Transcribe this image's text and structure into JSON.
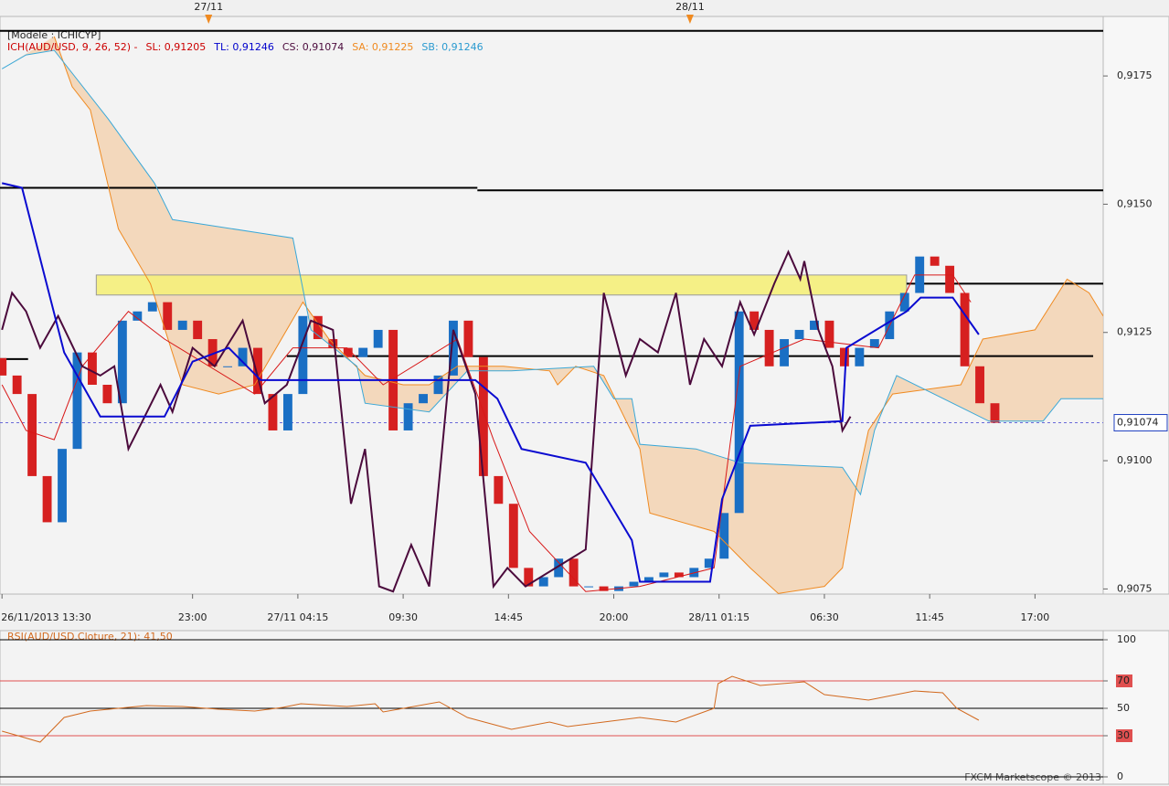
{
  "chart_data": [
    {
      "type": "candlestick",
      "title": "[Modele : ICHICYP]",
      "legend": [
        {
          "text": "ICH(AUD/USD, 9, 26, 52) -",
          "color": "#cc0000"
        },
        {
          "text": "SL: 0,91205",
          "color": "#cc0000"
        },
        {
          "text": "TL: 0,91246",
          "color": "#0000cc"
        },
        {
          "text": "CS: 0,91074",
          "color": "#4b0a3c"
        },
        {
          "text": "SA: 0,91225",
          "color": "#f08a20"
        },
        {
          "text": "SB: 0,91246",
          "color": "#2a9ad0"
        }
      ],
      "xlim": [
        -0.1,
        54.9
      ],
      "ylim": [
        0.9074,
        0.91866
      ],
      "xticks": [
        {
          "value": 0,
          "label": "26/11/2013 13:30"
        },
        {
          "value": 9.5,
          "label": "23:00"
        },
        {
          "value": 14.75,
          "label": "27/11 04:15"
        },
        {
          "value": 20,
          "label": "09:30"
        },
        {
          "value": 25.25,
          "label": "14:45"
        },
        {
          "value": 30.5,
          "label": "20:00"
        },
        {
          "value": 35.75,
          "label": "28/11 01:15"
        },
        {
          "value": 41,
          "label": "06:30"
        },
        {
          "value": 46.25,
          "label": "11:45"
        },
        {
          "value": 51.5,
          "label": "17:00"
        }
      ],
      "yticks": [
        {
          "value": 0.9175,
          "label": "0,9175"
        },
        {
          "value": 0.915,
          "label": "0,9150"
        },
        {
          "value": 0.9125,
          "label": "0,9125"
        },
        {
          "value": 0.91,
          "label": "0,9100"
        },
        {
          "value": 0.9075,
          "label": "0,9075"
        }
      ],
      "xmarkers": [
        {
          "value": 10.3,
          "label": "27/11"
        },
        {
          "value": 34.3,
          "label": "28/11"
        }
      ],
      "last_price": {
        "value": 0.91074,
        "label": "0,91074"
      },
      "up_color": "#1a6fc4",
      "down_color": "#d62020",
      "x": [
        0,
        0.75,
        1.5,
        2.25,
        3,
        3.75,
        4.5,
        5.25,
        6,
        6.75,
        7.5,
        8.25,
        9,
        9.75,
        10.5,
        11.25,
        12,
        12.75,
        13.5,
        14.25,
        15,
        15.75,
        16.5,
        17.25,
        18,
        18.75,
        19.5,
        20.25,
        21,
        21.75,
        22.5,
        23.25,
        24,
        24.75,
        25.5,
        26.25,
        27,
        27.75,
        28.5,
        29.25,
        30,
        30.75,
        31.5,
        32.25,
        33,
        33.75,
        34.5,
        35.25,
        36,
        36.75,
        37.5,
        38.25,
        39,
        39.75,
        40.5,
        41.25,
        42,
        42.75,
        43.5,
        44.25,
        45,
        45.75,
        46.5,
        47.25,
        48,
        48.75,
        49.5
      ],
      "open": [
        0.912,
        0.91166,
        0.9113,
        0.9097,
        0.9088,
        0.91023,
        0.91211,
        0.91148,
        0.91112,
        0.91273,
        0.91291,
        0.91309,
        0.91255,
        0.91273,
        0.91237,
        0.91184,
        0.91184,
        0.9122,
        0.9113,
        0.91059,
        0.9113,
        0.91282,
        0.91237,
        0.9122,
        0.91202,
        0.9122,
        0.91255,
        0.91059,
        0.91112,
        0.9113,
        0.91166,
        0.91273,
        0.91202,
        0.9097,
        0.90916,
        0.90791,
        0.90755,
        0.90773,
        0.90809,
        0.90755,
        0.90755,
        0.90746,
        0.90755,
        0.90764,
        0.90773,
        0.90782,
        0.90773,
        0.90791,
        0.90809,
        0.90898,
        0.91291,
        0.91255,
        0.91184,
        0.91237,
        0.91255,
        0.91273,
        0.9122,
        0.91184,
        0.9122,
        0.91237,
        0.91291,
        0.91327,
        0.91398,
        0.9138,
        0.91327,
        0.91184,
        0.91112
      ],
      "close": [
        0.91166,
        0.9113,
        0.9097,
        0.9088,
        0.91023,
        0.91211,
        0.91148,
        0.91112,
        0.91273,
        0.91291,
        0.91309,
        0.91255,
        0.91273,
        0.91237,
        0.91184,
        0.91184,
        0.9122,
        0.9113,
        0.91059,
        0.9113,
        0.91282,
        0.91237,
        0.9122,
        0.91202,
        0.9122,
        0.91255,
        0.91059,
        0.91112,
        0.9113,
        0.91166,
        0.91273,
        0.91202,
        0.9097,
        0.90916,
        0.90791,
        0.90755,
        0.90773,
        0.90809,
        0.90755,
        0.90755,
        0.90746,
        0.90755,
        0.90764,
        0.90773,
        0.90782,
        0.90773,
        0.90791,
        0.90809,
        0.90898,
        0.91291,
        0.91255,
        0.91184,
        0.91237,
        0.91255,
        0.91273,
        0.9122,
        0.91184,
        0.9122,
        0.91237,
        0.91291,
        0.91327,
        0.91398,
        0.9138,
        0.91327,
        0.91184,
        0.91112,
        0.91074
      ],
      "levels": [
        {
          "value": 0.91838,
          "x": [
            -0.1,
            54.9
          ]
        },
        {
          "value": 0.91532,
          "x": [
            -0.1,
            23.7
          ]
        },
        {
          "value": 0.91527,
          "x": [
            23.7,
            54.9
          ]
        },
        {
          "value": 0.91204,
          "x": [
            14.2,
            54.4
          ]
        },
        {
          "value": 0.91198,
          "x": [
            -0.1,
            1.3
          ]
        },
        {
          "value": 0.91345,
          "x": [
            45.1,
            54.9
          ]
        }
      ],
      "zone": {
        "y": [
          0.91323,
          0.91362
        ],
        "x": [
          4.7,
          45.1
        ],
        "color": "#f5f07a"
      },
      "cloud_color": "#f3cfaa",
      "series": [
        {
          "color": "#f08a20",
          "width": 1,
          "x": [
            2.6,
            3.5,
            4.4,
            5.8,
            7.4,
            9.0,
            10.8,
            12.6,
            15.0,
            16.3,
            18.1,
            20.0,
            21.3,
            22.7,
            25.0,
            27.3,
            27.7,
            28.6,
            30.0,
            31.8,
            32.3,
            35.5,
            37.3,
            38.7,
            41.0,
            41.9,
            42.6,
            43.2,
            44.4,
            47.8,
            48.9,
            51.5,
            53.1,
            54.2,
            54.9
          ],
          "values": [
            0.91827,
            0.91729,
            0.91684,
            0.91452,
            0.91345,
            0.91148,
            0.9113,
            0.91148,
            0.91309,
            0.91237,
            0.91166,
            0.91148,
            0.91148,
            0.91184,
            0.91184,
            0.91175,
            0.91148,
            0.91184,
            0.91166,
            0.91023,
            0.90898,
            0.90862,
            0.90791,
            0.90741,
            0.90755,
            0.90791,
            0.90952,
            0.91059,
            0.9113,
            0.91148,
            0.91237,
            0.91255,
            0.91354,
            0.91327,
            0.91282
          ]
        },
        {
          "color": "#3aa8d8",
          "width": 1,
          "x": [
            0,
            1.2,
            2.6,
            5.3,
            7.6,
            8.5,
            14.5,
            15.4,
            17.7,
            18.1,
            21.3,
            23.2,
            25.4,
            29.5,
            30.5,
            31.4,
            31.8,
            34.6,
            36.8,
            41.9,
            42.8,
            43.5,
            44.6,
            49.2,
            51.9,
            52.8,
            54.9
          ],
          "values": [
            0.91764,
            0.91791,
            0.918,
            0.91666,
            0.91541,
            0.9147,
            0.91434,
            0.91255,
            0.91184,
            0.91112,
            0.91095,
            0.91175,
            0.91175,
            0.91184,
            0.91121,
            0.91121,
            0.91032,
            0.91023,
            0.90996,
            0.90987,
            0.90934,
            0.91059,
            0.91166,
            0.91077,
            0.91077,
            0.91121,
            0.91121
          ]
        },
        {
          "color": "#d81818",
          "width": 1,
          "x": [
            0,
            1.2,
            2.6,
            4.0,
            6.3,
            8.1,
            12.6,
            14.5,
            17.2,
            19.0,
            22.7,
            24.5,
            26.3,
            29.1,
            31.8,
            35.5,
            36.8,
            40.0,
            43.7,
            45.5,
            47.4,
            48.3
          ],
          "values": [
            0.91148,
            0.91059,
            0.91041,
            0.91184,
            0.91291,
            0.91237,
            0.9113,
            0.9122,
            0.9122,
            0.91148,
            0.91237,
            0.91041,
            0.90862,
            0.90745,
            0.90755,
            0.90791,
            0.91184,
            0.91237,
            0.9122,
            0.91362,
            0.91362,
            0.91309
          ]
        },
        {
          "color": "#4b0a3c",
          "width": 2,
          "x": [
            0,
            0.5,
            1.2,
            1.9,
            2.8,
            4.0,
            4.9,
            5.6,
            6.3,
            7.0,
            7.9,
            8.5,
            9.5,
            10.6,
            12.0,
            13.1,
            14.2,
            15.4,
            16.5,
            17.4,
            18.1,
            18.8,
            19.5,
            20.4,
            21.3,
            22.5,
            23.6,
            24.5,
            25.2,
            26.1,
            29.1,
            30.0,
            31.1,
            31.8,
            32.7,
            33.6,
            34.3,
            35.0,
            35.9,
            36.8,
            37.5,
            38.5,
            39.2,
            39.8,
            40.0,
            40.7,
            41.4,
            41.9,
            42.3
          ],
          "values": [
            0.91255,
            0.91327,
            0.91291,
            0.9122,
            0.91282,
            0.91184,
            0.91166,
            0.91184,
            0.91023,
            0.91077,
            0.91148,
            0.91095,
            0.9122,
            0.91184,
            0.91273,
            0.91112,
            0.91148,
            0.91273,
            0.91255,
            0.90916,
            0.91023,
            0.90755,
            0.90745,
            0.90836,
            0.90755,
            0.91255,
            0.9113,
            0.90755,
            0.90791,
            0.90755,
            0.90827,
            0.91327,
            0.91166,
            0.91237,
            0.91211,
            0.91327,
            0.91148,
            0.91237,
            0.91184,
            0.91309,
            0.91246,
            0.91345,
            0.91407,
            0.91354,
            0.91389,
            0.91255,
            0.91184,
            0.91059,
            0.91086
          ]
        },
        {
          "color": "#0a0ad0",
          "width": 2,
          "x": [
            0,
            1.0,
            3.1,
            4.9,
            8.1,
            9.5,
            11.3,
            12.9,
            23.6,
            24.7,
            25.9,
            29.1,
            31.4,
            31.8,
            35.3,
            35.9,
            37.3,
            41.9,
            42.1,
            45.1,
            45.8,
            47.4,
            48.7
          ],
          "values": [
            0.91541,
            0.91532,
            0.91211,
            0.91086,
            0.91086,
            0.91193,
            0.9122,
            0.91157,
            0.91157,
            0.91121,
            0.91023,
            0.90996,
            0.90845,
            0.90764,
            0.90764,
            0.90925,
            0.91068,
            0.91077,
            0.9122,
            0.91291,
            0.91318,
            0.91318,
            0.91246
          ]
        }
      ]
    },
    {
      "type": "line",
      "title": "RSI(AUD/USD.Cloture, 21): 41,50",
      "color": "#d2691e",
      "xlim": [
        -0.1,
        54.9
      ],
      "ylim": [
        0,
        100
      ],
      "yticks": [
        100,
        70,
        50,
        30,
        0
      ],
      "levels": [
        {
          "value": 100,
          "color": "#000000"
        },
        {
          "value": 70,
          "color": "#e05050",
          "label_bg": true
        },
        {
          "value": 50,
          "color": "#000000"
        },
        {
          "value": 30,
          "color": "#e05050",
          "label_bg": true
        },
        {
          "value": 0,
          "color": "#000000"
        }
      ],
      "x": [
        0,
        0.8,
        1.9,
        3.1,
        4.4,
        5.8,
        7.2,
        9.0,
        10.8,
        12.6,
        14.0,
        14.9,
        17.2,
        18.6,
        19.0,
        21.8,
        23.2,
        25.4,
        27.3,
        28.2,
        30.0,
        31.8,
        33.6,
        35.5,
        35.7,
        36.4,
        37.8,
        40.0,
        41.0,
        43.2,
        45.5,
        46.9,
        47.6,
        48.7
      ],
      "values": [
        33.3,
        30,
        25.3,
        43.3,
        48,
        50,
        52,
        51.3,
        49.3,
        48,
        50.7,
        53.3,
        51.3,
        53.3,
        47.3,
        54.7,
        43.3,
        34.7,
        40,
        36.7,
        40,
        43.3,
        40,
        50,
        68,
        73.3,
        66.7,
        69.3,
        60,
        56,
        62.7,
        61.3,
        50,
        41.3
      ]
    }
  ],
  "footer": "FXCM Marketscope © 2013"
}
